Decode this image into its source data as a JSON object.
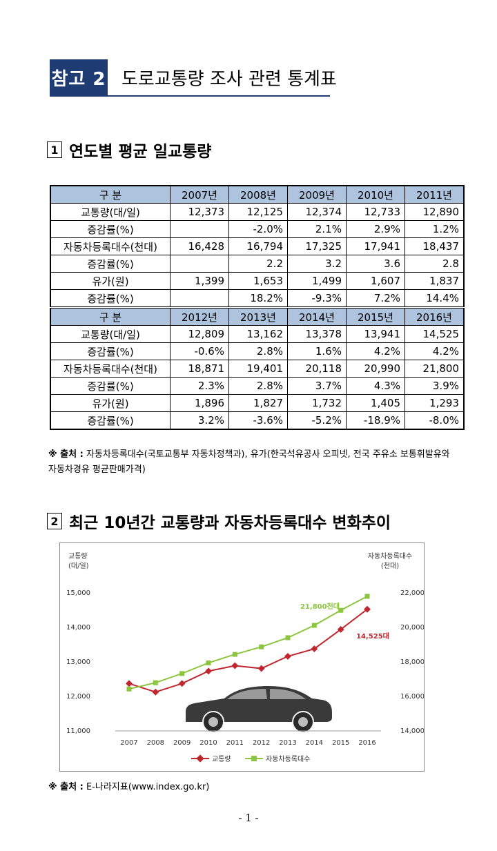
{
  "header": {
    "badge": "참고 2",
    "title": "도로교통량 조사 관련 통계표"
  },
  "section1": {
    "num": "1",
    "title": "연도별 평균 일교통량"
  },
  "table": {
    "blocks": [
      {
        "header": [
          "구 분",
          "2007년",
          "2008년",
          "2009년",
          "2010년",
          "2011년"
        ],
        "rows": [
          [
            "교통량(대/일)",
            "12,373",
            "12,125",
            "12,374",
            "12,733",
            "12,890"
          ],
          [
            "증감률(%)",
            "",
            "-2.0%",
            "2.1%",
            "2.9%",
            "1.2%"
          ],
          [
            "자동차등록대수(천대)",
            "16,428",
            "16,794",
            "17,325",
            "17,941",
            "18,437"
          ],
          [
            "증감률(%)",
            "",
            "2.2",
            "3.2",
            "3.6",
            "2.8"
          ],
          [
            "유가(원)",
            "1,399",
            "1,653",
            "1,499",
            "1,607",
            "1,837"
          ],
          [
            "증감률(%)",
            "",
            "18.2%",
            "-9.3%",
            "7.2%",
            "14.4%"
          ]
        ]
      },
      {
        "header": [
          "구 분",
          "2012년",
          "2013년",
          "2014년",
          "2015년",
          "2016년"
        ],
        "rows": [
          [
            "교통량(대/일)",
            "12,809",
            "13,162",
            "13,378",
            "13,941",
            "14,525"
          ],
          [
            "증감률(%)",
            "-0.6%",
            "2.8%",
            "1.6%",
            "4.2%",
            "4.2%"
          ],
          [
            "자동차등록대수(천대)",
            "18,871",
            "19,401",
            "20,118",
            "20,990",
            "21,800"
          ],
          [
            "증감률(%)",
            "2.3%",
            "2.8%",
            "3.7%",
            "4.3%",
            "3.9%"
          ],
          [
            "유가(원)",
            "1,896",
            "1,827",
            "1,732",
            "1,405",
            "1,293"
          ],
          [
            "증감률(%)",
            "3.2%",
            "-3.6%",
            "-5.2%",
            "-18.9%",
            "-8.0%"
          ]
        ]
      }
    ]
  },
  "note1": {
    "mark": "※ 출처 :",
    "text": "자동차등록대수(국토교통부 자동차정책과), 유가(한국석유공사 오피넷, 전국 주유소 보통휘발유와 자동차경유 평균판매가격)"
  },
  "section2": {
    "num": "2",
    "title": "최근 10년간 교통량과 자동차등록대수 변화추이"
  },
  "chart_data": {
    "type": "line",
    "categories": [
      "2007",
      "2008",
      "2009",
      "2010",
      "2011",
      "2012",
      "2013",
      "2014",
      "2015",
      "2016"
    ],
    "series": [
      {
        "name": "교통량",
        "axis": "left",
        "color": "#c0262d",
        "values": [
          12373,
          12125,
          12374,
          12733,
          12890,
          12809,
          13162,
          13378,
          13941,
          14525
        ]
      },
      {
        "name": "자동차등록대수",
        "axis": "right",
        "color": "#8cc63f",
        "values": [
          16428,
          16794,
          17325,
          17941,
          18437,
          18871,
          19401,
          20118,
          20990,
          21800
        ]
      }
    ],
    "ylabel_left": [
      "교통량",
      "(대/일)"
    ],
    "ylabel_right": [
      "자동차등록대수",
      "(천대)"
    ],
    "ylim_left": [
      11000,
      15000
    ],
    "ylim_right": [
      14000,
      22000
    ],
    "yticks_left": [
      "11,000",
      "12,000",
      "13,000",
      "14,000",
      "15,000"
    ],
    "yticks_right": [
      "14,000",
      "16,000",
      "18,000",
      "20,000",
      "22,000"
    ],
    "annotations": [
      {
        "text": "21,800천대",
        "color": "#8cc63f"
      },
      {
        "text": "14,525대",
        "color": "#c0262d"
      }
    ],
    "legend_position": "bottom",
    "grid": false
  },
  "note2": {
    "mark": "※ 출처 :",
    "text": "E-나라지표(www.index.go.kr)"
  },
  "page_number": "- 1 -",
  "icons": {
    "car": "car-silhouette-icon"
  }
}
